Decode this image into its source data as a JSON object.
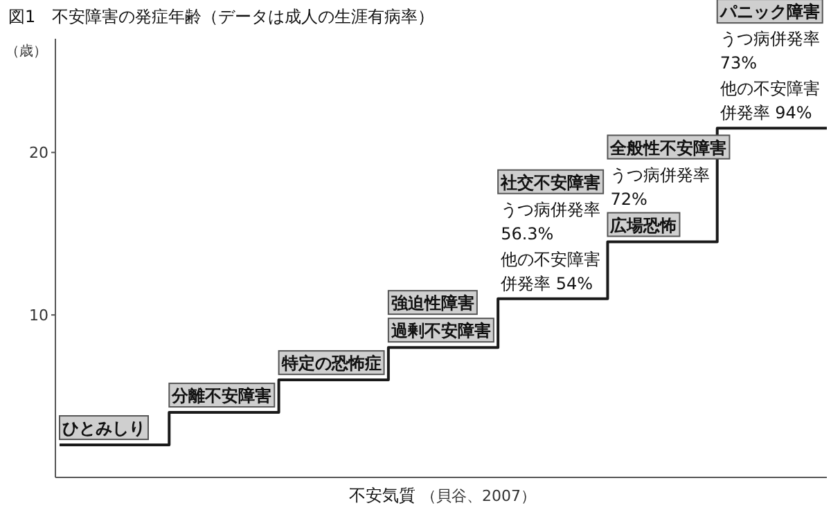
{
  "chart_data": {
    "type": "step",
    "title": "図1　不安障害の発症年齢（データは成人の生涯有病率）",
    "ylabel": "（歳）",
    "xlabel": "不安気質",
    "categories": [
      null,
      null,
      null,
      null,
      null,
      null,
      null,
      null
    ],
    "values": [
      2,
      4,
      6,
      8,
      11,
      14.5,
      21.5,
      21.5
    ],
    "color": "#1a1a1a",
    "ylim": [
      0,
      27
    ],
    "yticks": [
      10,
      20
    ],
    "tick_labels": "y",
    "annotations": [
      "（貝谷、2007）",
      {
        "text": "ひとみしり",
        "y": 2
      },
      {
        "text": "分離不安障害",
        "y": 4
      },
      {
        "text": "特定の恐怖症",
        "y": 6
      },
      {
        "text": "過剰不安障害",
        "y": 8
      },
      "強迫性障害",
      {
        "text": "他の不安障害併発率 54%",
        "y": 11
      },
      "うつ病併発率56.3%",
      "社交不安障害",
      {
        "text": "広場恐怖",
        "y": 14.5
      },
      "うつ病併発率72%",
      "全般性不安障害",
      {
        "text": "他の不安障害併発率 94%",
        "y": 21.5
      },
      "うつ病併発率73%",
      "パニック障害"
    ]
  }
}
